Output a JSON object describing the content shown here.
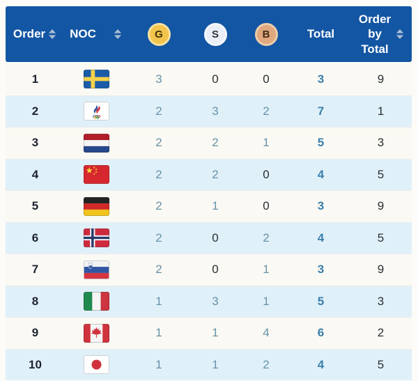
{
  "table": {
    "columns": [
      {
        "label": "Order",
        "sortable": true
      },
      {
        "label": "NOC",
        "sortable": true
      },
      {
        "label": "G",
        "icon": "gold-medal-icon"
      },
      {
        "label": "S",
        "icon": "silver-medal-icon"
      },
      {
        "label": "B",
        "icon": "bronze-medal-icon"
      },
      {
        "label": "Total",
        "sortable": false
      },
      {
        "label": "Order by Total",
        "sortable": true
      }
    ],
    "rows": [
      {
        "order": "1",
        "flag": "sweden",
        "gold": "3",
        "silver": "0",
        "bronze": "0",
        "total": "3",
        "order_by_total": "9"
      },
      {
        "order": "2",
        "flag": "roc",
        "gold": "2",
        "silver": "3",
        "bronze": "2",
        "total": "7",
        "order_by_total": "1"
      },
      {
        "order": "3",
        "flag": "netherlands",
        "gold": "2",
        "silver": "2",
        "bronze": "1",
        "total": "5",
        "order_by_total": "3"
      },
      {
        "order": "4",
        "flag": "china",
        "gold": "2",
        "silver": "2",
        "bronze": "0",
        "total": "4",
        "order_by_total": "5"
      },
      {
        "order": "5",
        "flag": "germany",
        "gold": "2",
        "silver": "1",
        "bronze": "0",
        "total": "3",
        "order_by_total": "9"
      },
      {
        "order": "6",
        "flag": "norway",
        "gold": "2",
        "silver": "0",
        "bronze": "2",
        "total": "4",
        "order_by_total": "5"
      },
      {
        "order": "7",
        "flag": "slovenia",
        "gold": "2",
        "silver": "0",
        "bronze": "1",
        "total": "3",
        "order_by_total": "9"
      },
      {
        "order": "8",
        "flag": "italy",
        "gold": "1",
        "silver": "3",
        "bronze": "1",
        "total": "5",
        "order_by_total": "3"
      },
      {
        "order": "9",
        "flag": "canada",
        "gold": "1",
        "silver": "1",
        "bronze": "4",
        "total": "6",
        "order_by_total": "2"
      },
      {
        "order": "10",
        "flag": "japan",
        "gold": "1",
        "silver": "1",
        "bronze": "2",
        "total": "4",
        "order_by_total": "5"
      }
    ],
    "colors": {
      "header_bg": "#1356a3",
      "header_text": "#ffffff",
      "row_bg": "#faf9f3",
      "row_alt_bg": "#e0f0f9",
      "count_text": "#6792a8",
      "zero_text": "#2a2e33",
      "total_text": "#3a7fab",
      "gold_badge": "#f2c44c",
      "silver_badge": "#e9eef7",
      "bronze_badge": "#e0a87d",
      "sort_icon": "#a9bdd4"
    }
  }
}
